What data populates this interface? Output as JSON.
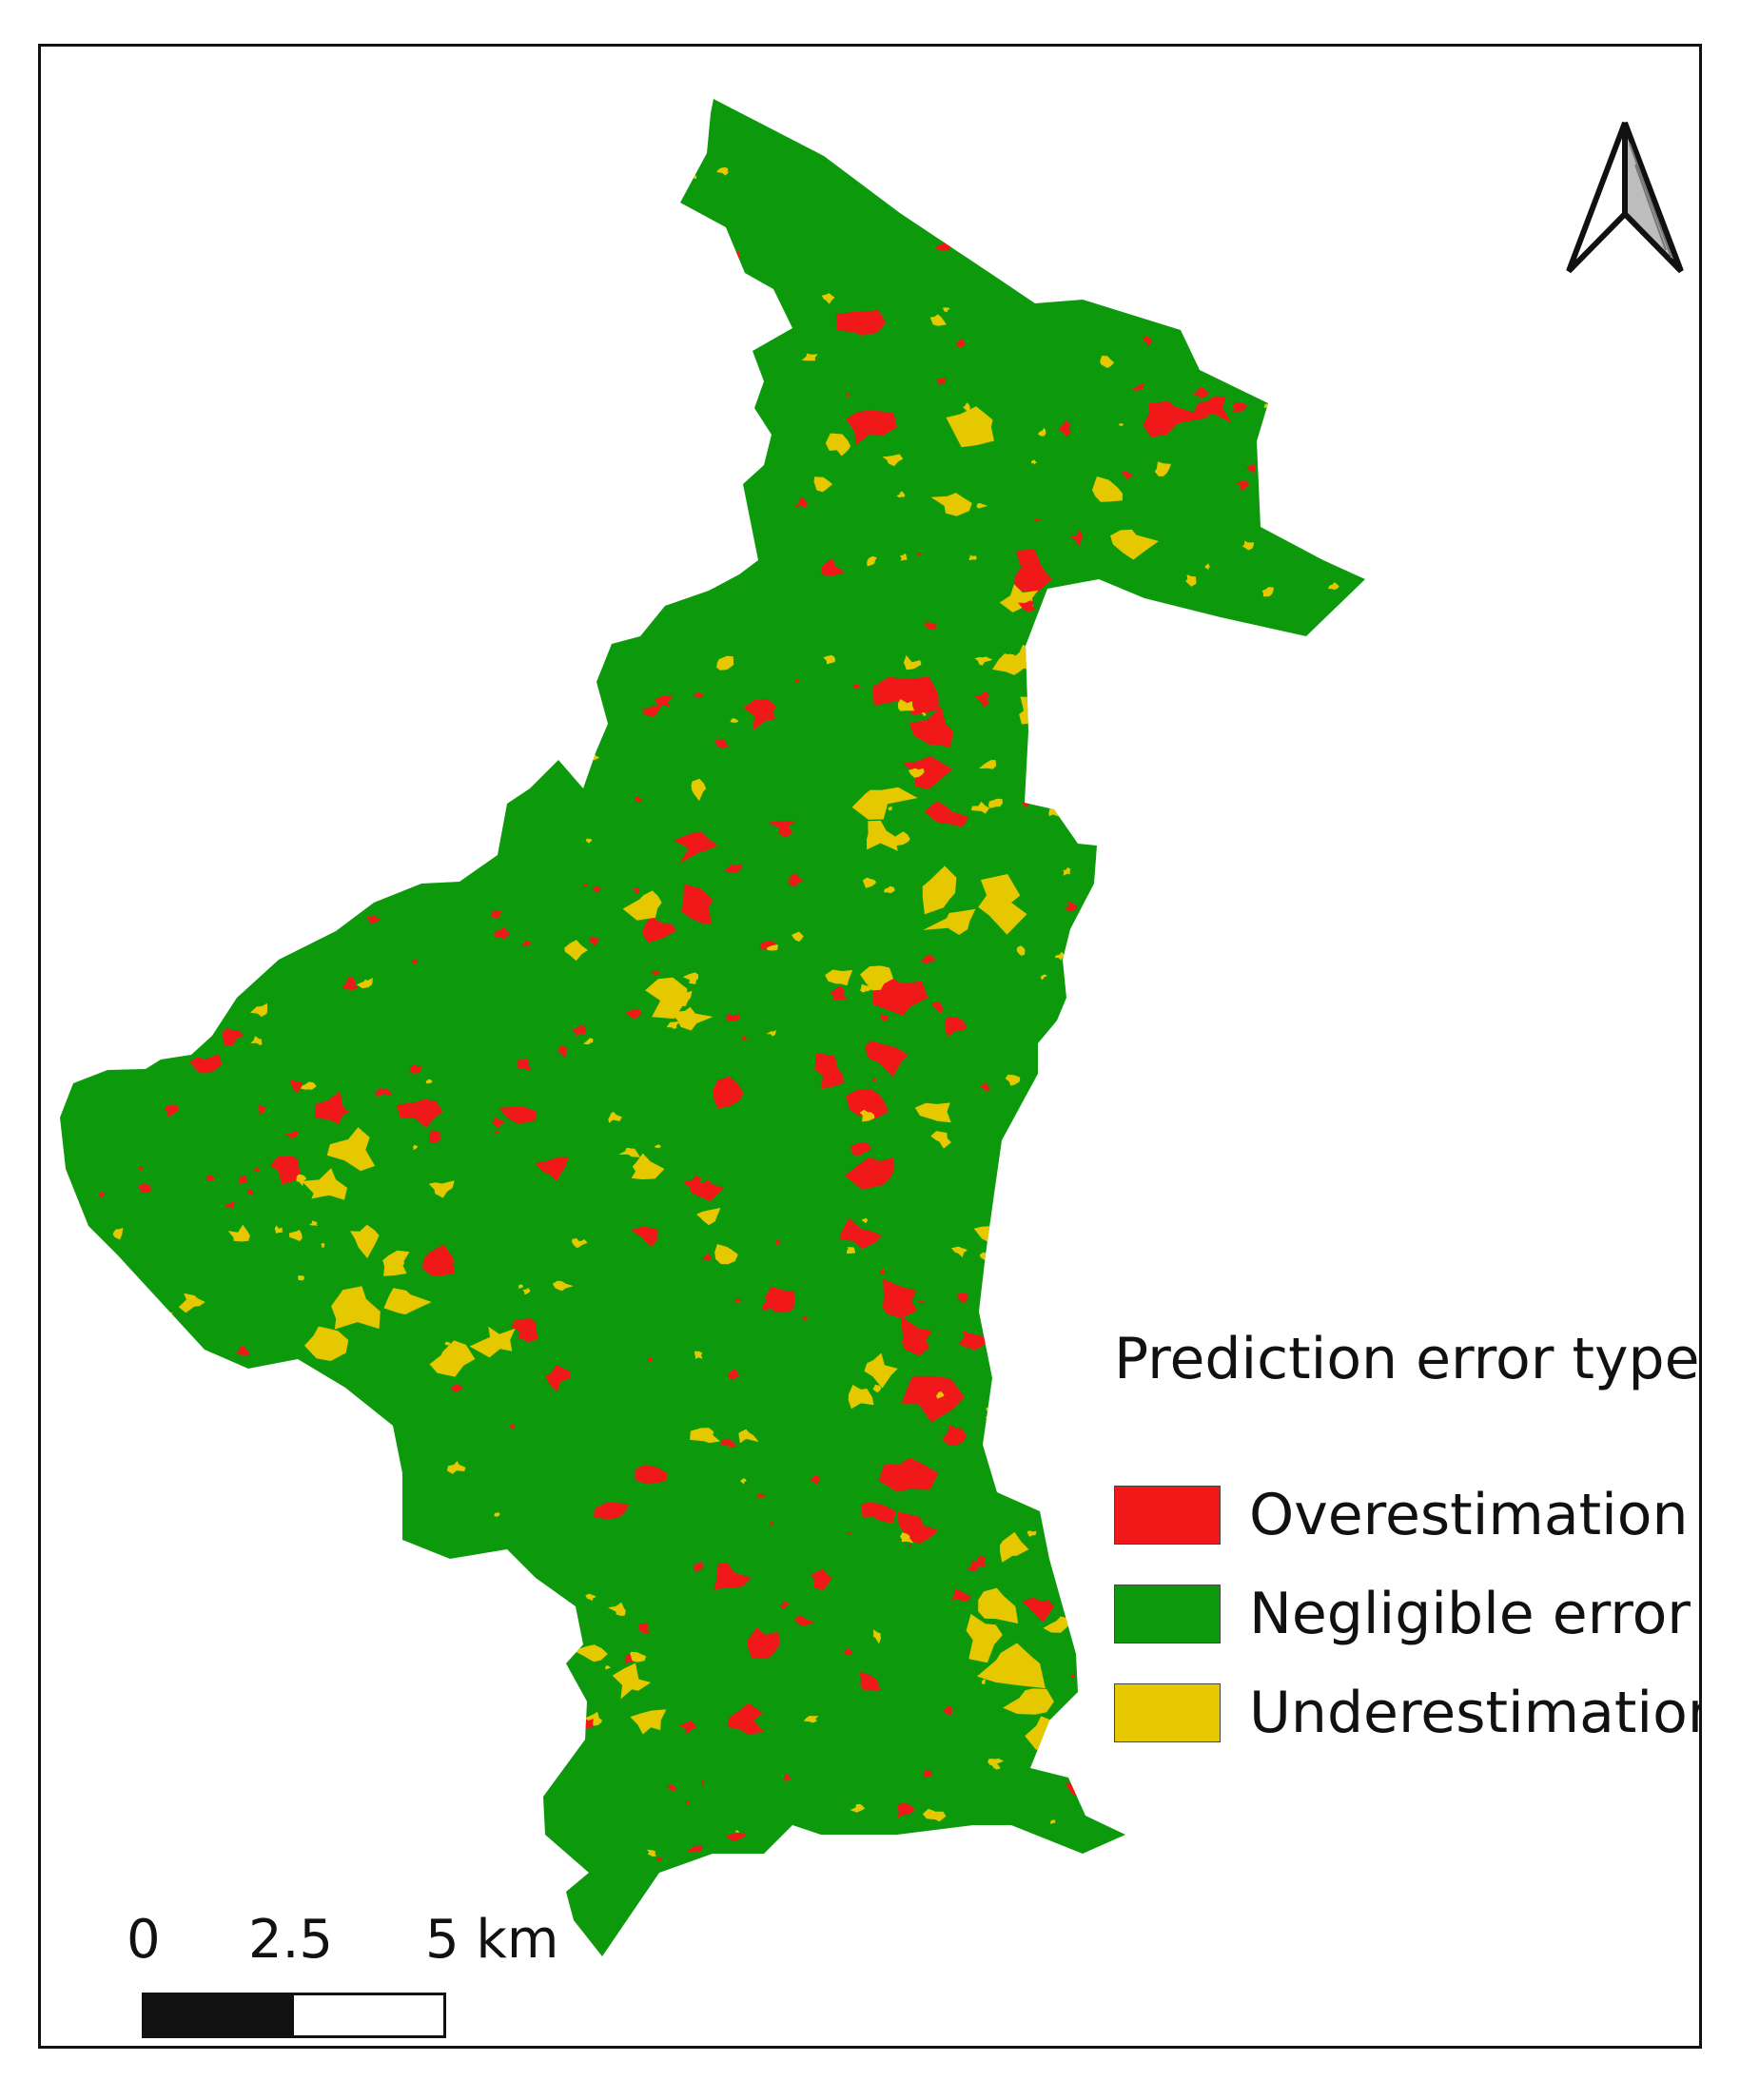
{
  "legend": {
    "title": "Prediction error type",
    "items": [
      {
        "label": "Overestimation",
        "color": "#f01818"
      },
      {
        "label": "Negligible error",
        "color": "#0c9a0c"
      },
      {
        "label": "Underestimation",
        "color": "#e6c800"
      }
    ]
  },
  "scalebar": {
    "ticks": [
      "0",
      "2.5",
      "5 km"
    ]
  },
  "north_arrow": {
    "icon": "north-arrow-icon"
  },
  "colors": {
    "overestimation": "#f01818",
    "negligible": "#0c9a0c",
    "underestimation": "#e6c800",
    "frame": "#111111"
  }
}
